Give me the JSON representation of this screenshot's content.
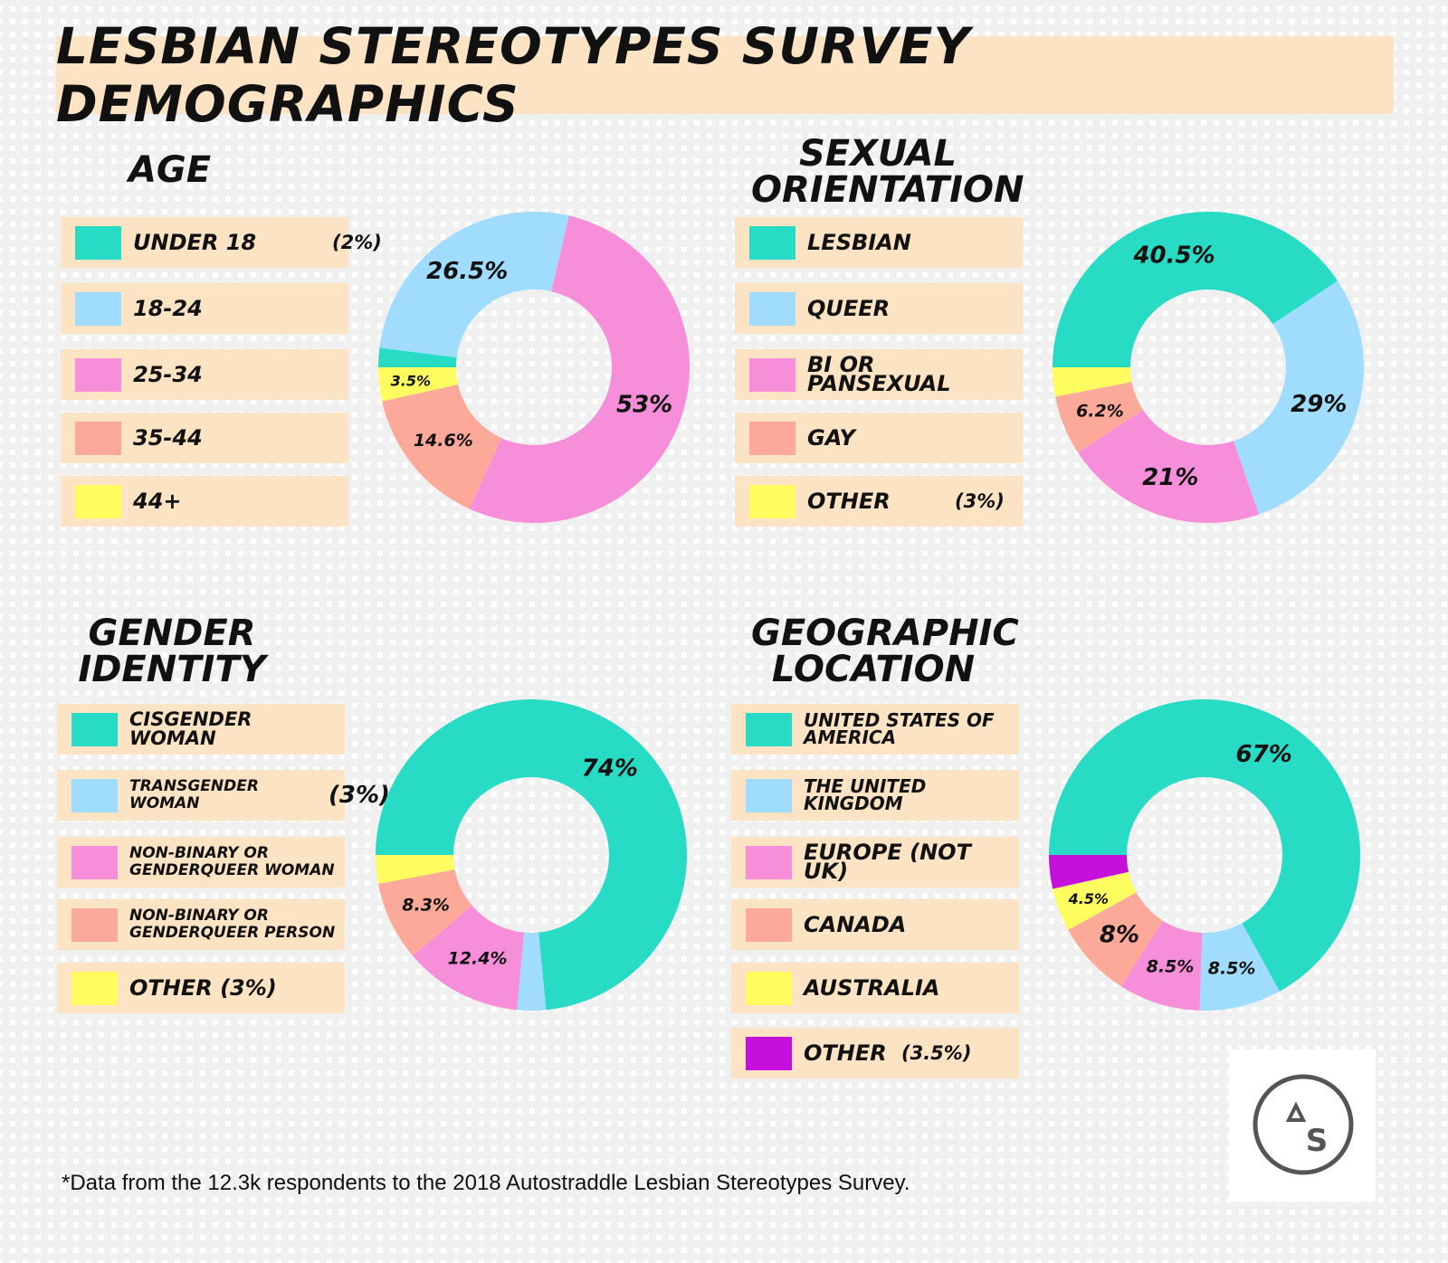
{
  "title": "LESBIAN STEREOTYPES SURVEY DEMOGRAPHICS",
  "footnote": "*Data from the 12.3k respondents to the 2018 Autostraddle Lesbian Stereotypes Survey.",
  "logo_text": "AS",
  "colors": {
    "teal": "#27dbc4",
    "blue": "#9fdcfd",
    "pink": "#f78ed9",
    "salmon": "#fda99a",
    "yellow": "#fdfd5f",
    "purple": "#c510dc",
    "band": "#fbe3c3"
  },
  "legends": {
    "age": [
      {
        "label": "UNDER 18",
        "note": "(2%)"
      },
      {
        "label": "18-24"
      },
      {
        "label": "25-34"
      },
      {
        "label": "35-44"
      },
      {
        "label": "44+"
      }
    ],
    "orientation": [
      {
        "label": "LESBIAN"
      },
      {
        "label": "QUEER"
      },
      {
        "label": "BI OR PANSEXUAL"
      },
      {
        "label": "GAY"
      },
      {
        "label": "OTHER",
        "note": "(3%)"
      }
    ],
    "gender": [
      {
        "label": "CISGENDER WOMAN"
      },
      {
        "label": "TRANSGENDER WOMAN",
        "note": "(3%)"
      },
      {
        "label": "NON-BINARY OR GENDERQUEER WOMAN"
      },
      {
        "label": "NON-BINARY OR GENDERQUEER PERSON"
      },
      {
        "label": "OTHER (3%)"
      }
    ],
    "geo": [
      {
        "label": "UNITED STATES OF AMERICA"
      },
      {
        "label": "THE UNITED KINGDOM"
      },
      {
        "label": "EUROPE (NOT UK)"
      },
      {
        "label": "CANADA"
      },
      {
        "label": "AUSTRALIA"
      },
      {
        "label": "OTHER",
        "note": "(3.5%)"
      }
    ]
  },
  "chart_data": [
    {
      "type": "pie",
      "title": "AGE",
      "donut": true,
      "start": "left",
      "direction": "clockwise",
      "categories": [
        "UNDER 18",
        "18-24",
        "25-34",
        "35-44",
        "44+"
      ],
      "values": [
        2,
        26.5,
        53,
        14.6,
        3.5
      ],
      "labels": [
        null,
        "26.5%",
        "53%",
        "14.6%",
        "3.5%"
      ],
      "colors": [
        "#27dbc4",
        "#9fdcfd",
        "#f78ed9",
        "#fda99a",
        "#fdfd5f"
      ]
    },
    {
      "type": "pie",
      "title": "SEXUAL ORIENTATION",
      "donut": true,
      "start": "left",
      "direction": "clockwise",
      "categories": [
        "LESBIAN",
        "QUEER",
        "BI OR PANSEXUAL",
        "GAY",
        "OTHER"
      ],
      "values": [
        40.5,
        29,
        21,
        6.2,
        3
      ],
      "labels": [
        "40.5%",
        "29%",
        "21%",
        "6.2%",
        null
      ],
      "colors": [
        "#27dbc4",
        "#9fdcfd",
        "#f78ed9",
        "#fda99a",
        "#fdfd5f"
      ]
    },
    {
      "type": "pie",
      "title": "GENDER IDENTITY",
      "donut": true,
      "start": "left",
      "direction": "clockwise",
      "categories": [
        "CISGENDER WOMAN",
        "TRANSGENDER WOMAN",
        "NON-BINARY OR GENDERQUEER WOMAN",
        "NON-BINARY OR GENDERQUEER PERSON",
        "OTHER"
      ],
      "values": [
        74,
        3,
        12.4,
        8.3,
        3
      ],
      "labels": [
        "74%",
        null,
        "12.4%",
        "8.3%",
        null
      ],
      "colors": [
        "#27dbc4",
        "#9fdcfd",
        "#f78ed9",
        "#fda99a",
        "#fdfd5f"
      ]
    },
    {
      "type": "pie",
      "title": "GEOGRAPHIC LOCATION",
      "donut": true,
      "start": "left",
      "direction": "clockwise",
      "categories": [
        "UNITED STATES OF AMERICA",
        "THE UNITED KINGDOM",
        "EUROPE (NOT UK)",
        "CANADA",
        "AUSTRALIA",
        "OTHER"
      ],
      "values": [
        67,
        8.5,
        8.5,
        8,
        4.5,
        3.5
      ],
      "labels": [
        "67%",
        "8.5%",
        "8.5%",
        "8%",
        "4.5%",
        null
      ],
      "colors": [
        "#27dbc4",
        "#9fdcfd",
        "#f78ed9",
        "#fda99a",
        "#fdfd5f",
        "#c510dc"
      ]
    }
  ]
}
